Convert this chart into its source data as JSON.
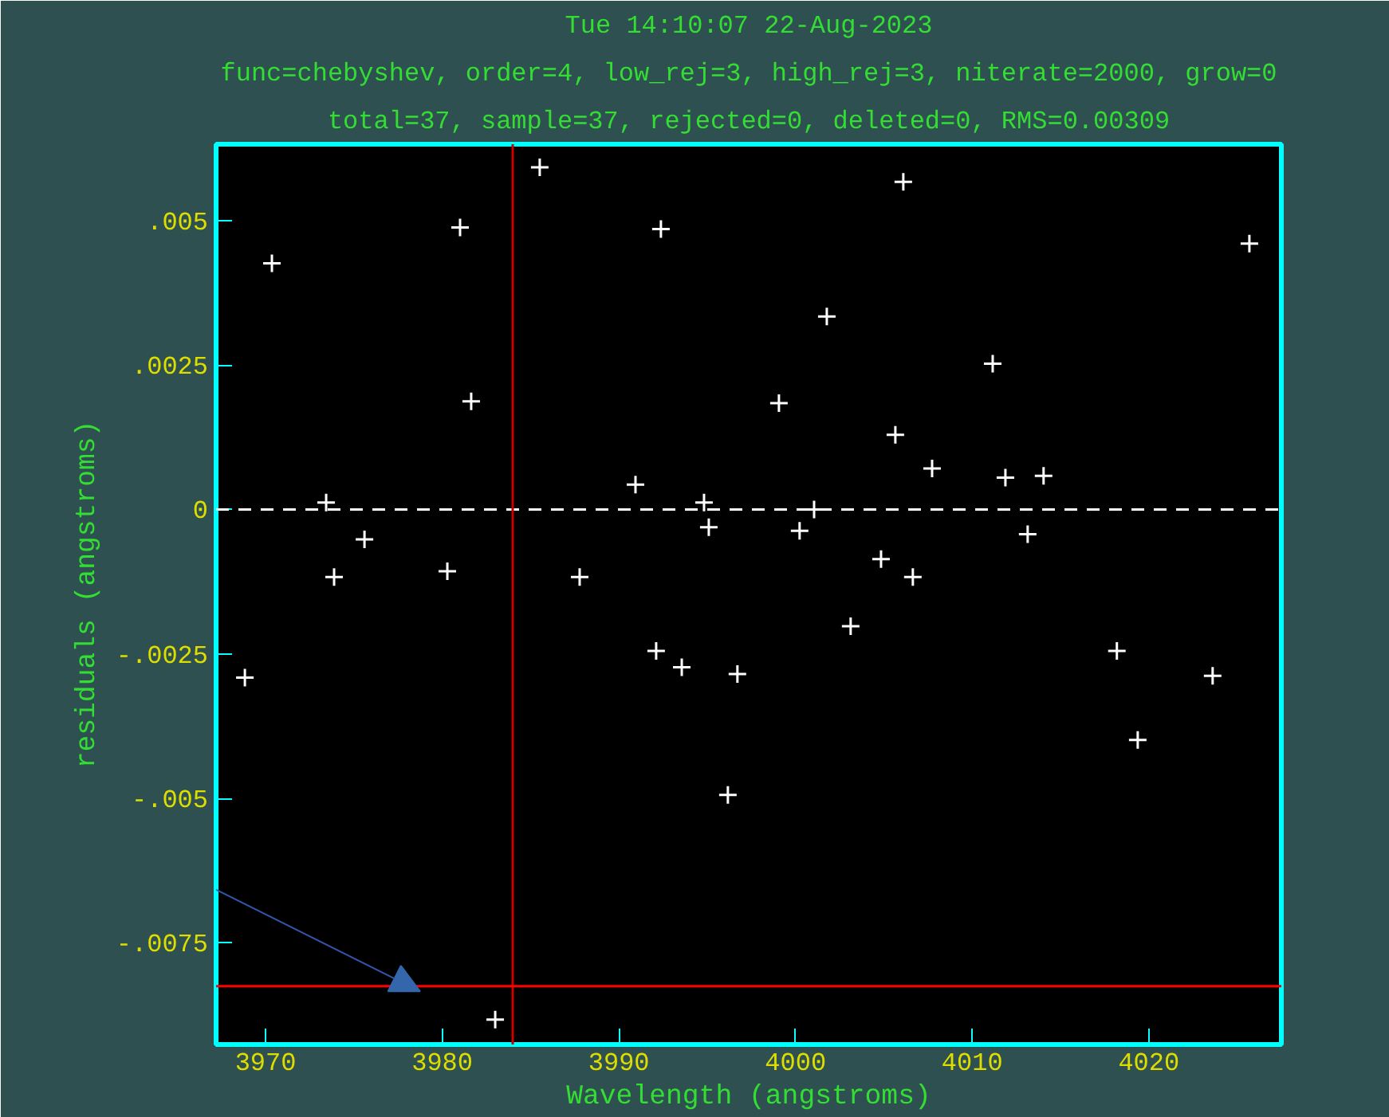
{
  "chart_data": {
    "type": "scatter",
    "title": "Tue 14:10:07 22-Aug-2023",
    "subtitle": "func=chebyshev, order=4, low_rej=3, high_rej=3, niterate=2000, grow=0",
    "annotations": [
      "total=37, sample=37, rejected=0, deleted=0, RMS=0.00309"
    ],
    "xlabel": "Wavelength (angstroms)",
    "ylabel": "residuals (angstroms)",
    "x": [
      3968.83,
      3970.36,
      3973.43,
      3973.88,
      3975.6,
      3980.29,
      3981.01,
      3981.64,
      3983.0,
      3985.52,
      3987.78,
      3990.94,
      3992.11,
      3992.38,
      3993.56,
      3994.82,
      3995.09,
      3996.17,
      3996.71,
      3999.06,
      4000.23,
      4001.05,
      4001.77,
      4003.12,
      4004.84,
      4005.65,
      4006.1,
      4006.64,
      4007.73,
      4011.16,
      4011.88,
      4013.14,
      4014.04,
      4018.19,
      4019.37,
      4023.61,
      4025.69
    ],
    "series": [
      {
        "color": "#ffffff",
        "values": [
          -0.00291,
          0.00426,
          0.00012,
          -0.00117,
          -0.00052,
          -0.00107,
          0.00488,
          0.00187,
          -0.00883,
          0.00592,
          -0.00117,
          0.00043,
          -0.00245,
          0.00485,
          -0.00273,
          0.00012,
          -0.00031,
          -0.00494,
          -0.00285,
          0.00184,
          -0.00037,
          0.0,
          0.00334,
          -0.00202,
          -0.00086,
          0.00129,
          0.00567,
          -0.00117,
          0.00071,
          0.00252,
          0.00055,
          -0.00043,
          0.00058,
          -0.00245,
          -0.00399,
          -0.00288,
          0.0046
        ]
      }
    ],
    "xlim": [
      3967.2,
      4027.5
    ],
    "ylim": [
      -0.00926,
      0.00632
    ],
    "xticks": [
      3970,
      3980,
      3990,
      4000,
      4010,
      4020
    ],
    "yticks": [
      {
        "value": 0.005,
        "label": ".005"
      },
      {
        "value": 0.0025,
        "label": ".0025"
      },
      {
        "value": 0,
        "label": "0"
      },
      {
        "value": -0.0025,
        "label": "-.0025"
      },
      {
        "value": -0.005,
        "label": "-.005"
      },
      {
        "value": -0.0075,
        "label": "-.0075"
      }
    ],
    "ref_lines": [
      {
        "axis": "y",
        "value": 0,
        "color": "#ffffff",
        "line_style": "dashed"
      },
      {
        "axis": "x",
        "value": 3983.99,
        "color": "#cc0000",
        "line_style": "solid"
      },
      {
        "axis": "y",
        "value": -0.00825,
        "color": "#ff0000",
        "line_style": "solid"
      }
    ],
    "grid": false,
    "marker": "cross"
  }
}
